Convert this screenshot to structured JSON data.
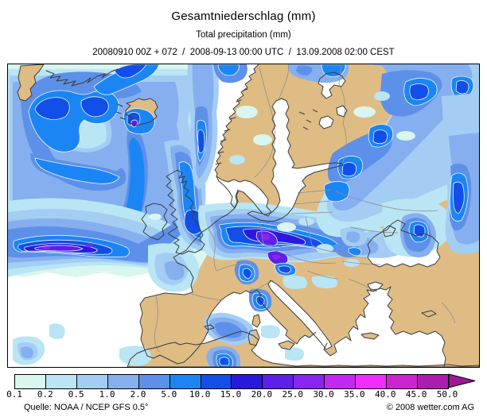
{
  "header": {
    "title": "Gesamtniederschlag (mm)",
    "subtitle": "Total precipitation (mm)",
    "run_info": "20080910 00Z + 072  /  2008-09-13 00:00 UTC  /  13.09.2008 02:00 CEST"
  },
  "legend": {
    "unit": "mm",
    "tick_labels": [
      "0.1",
      "0.2",
      "0.5",
      "1.0",
      "2.0",
      "5.0",
      "10.0",
      "15.0",
      "20.0",
      "25.0",
      "30.0",
      "35.0",
      "40.0",
      "45.0",
      "50.0"
    ],
    "colors": [
      "#d9f6f0",
      "#b9e5f5",
      "#a3cdf3",
      "#86aff0",
      "#5d90e8",
      "#1b86f3",
      "#124fe8",
      "#2a19dd",
      "#5c20ea",
      "#8a24f0",
      "#c228f4",
      "#f22cfe",
      "#cf22d0",
      "#ab1dac"
    ],
    "overflow_arrow_color": "#9c1894"
  },
  "map": {
    "land_color": "#dfbc84",
    "sea_color": "#ffffff",
    "country_border_color": "#8f8f8f",
    "coast_color": "#3c3c3c"
  },
  "footer": {
    "source": "Quelle: NOAA / NCEP GFS 0.5°",
    "copyright": "© 2008 wetter.com AG"
  }
}
